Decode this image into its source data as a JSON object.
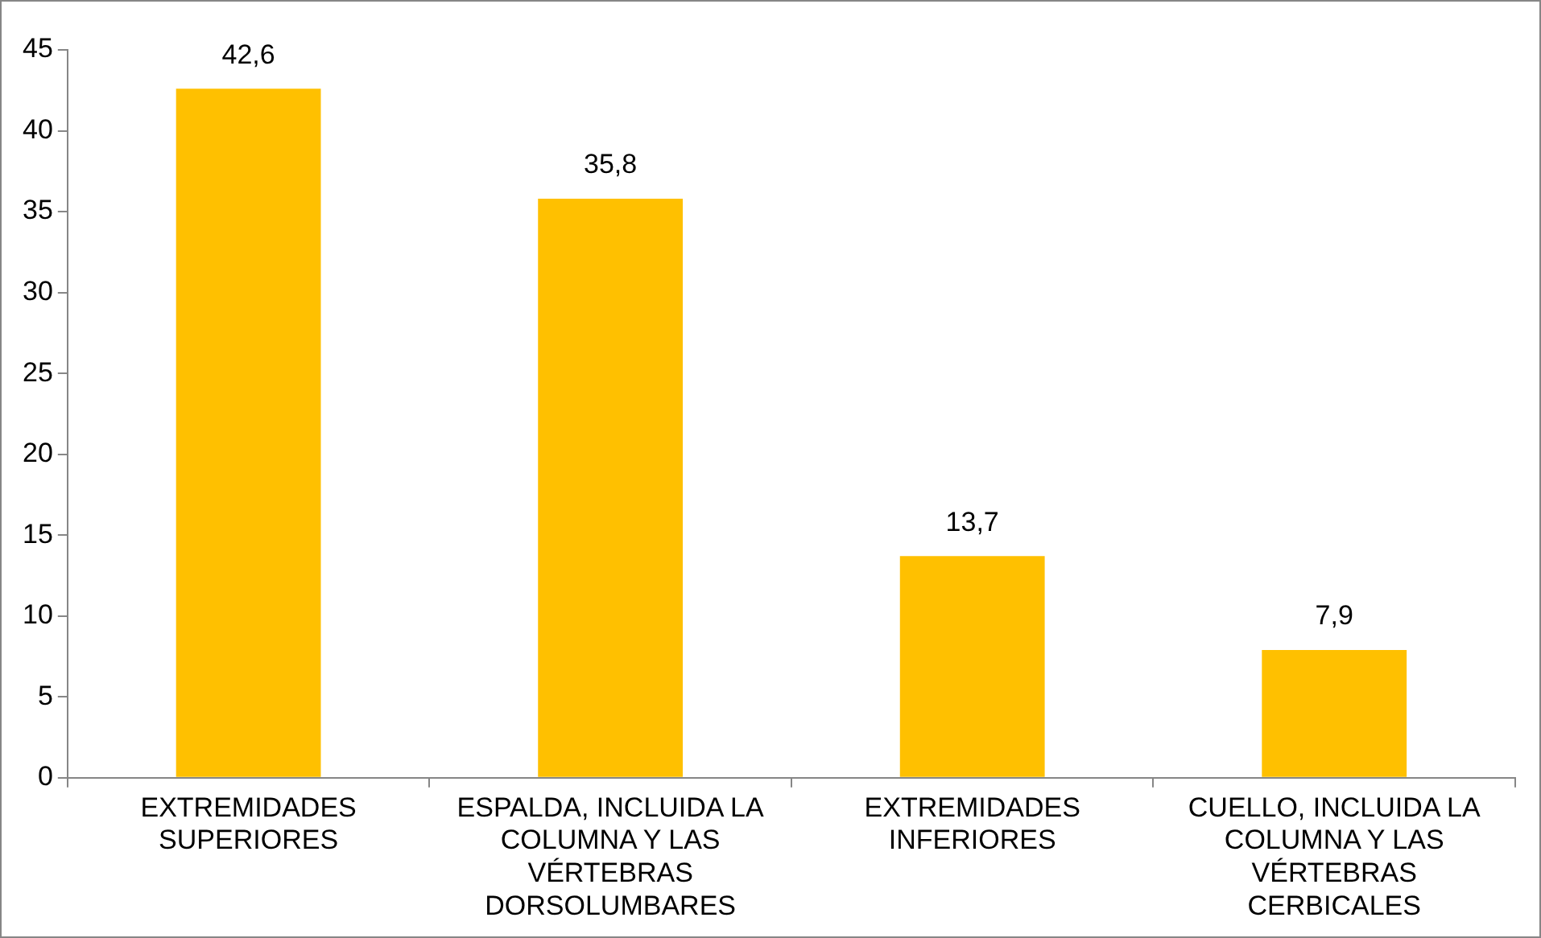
{
  "chart_data": {
    "type": "bar",
    "categories": [
      "EXTREMIDADES SUPERIORES",
      "ESPALDA, INCLUIDA LA COLUMNA Y LAS VÉRTEBRAS DORSOLUMBARES",
      "EXTREMIDADES INFERIORES",
      "CUELLO, INCLUIDA LA COLUMNA Y LAS VÉRTEBRAS CERBICALES"
    ],
    "values": [
      42.6,
      35.8,
      13.7,
      7.9
    ],
    "value_labels": [
      "42,6",
      "35,8",
      "13,7",
      "7,9"
    ],
    "color": "#ffc000",
    "ylim": [
      0,
      45
    ],
    "yticks": [
      0,
      5,
      10,
      15,
      20,
      25,
      30,
      35,
      40,
      45
    ],
    "grid": false,
    "legend": false
  }
}
